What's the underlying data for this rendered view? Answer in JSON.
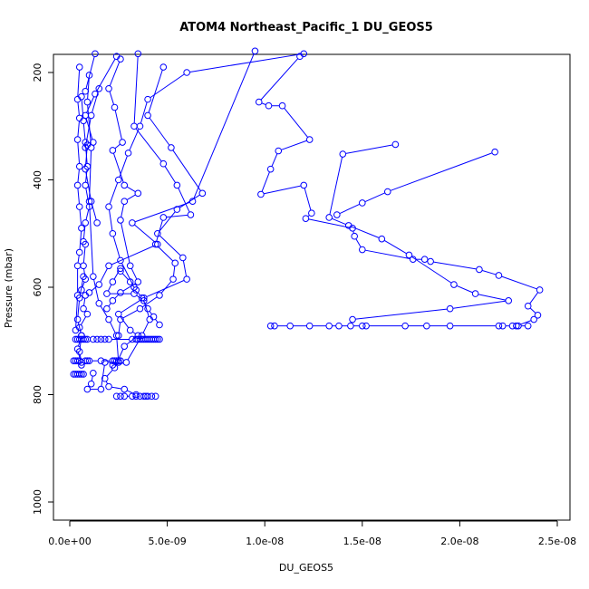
{
  "chart_data": {
    "type": "line",
    "title": "ATOM4 Northeast_Pacific_1 DU_GEOS5",
    "xlabel": "DU_GEOS5",
    "ylabel": "Pressure (mbar)",
    "xlim": [
      0,
      2.5e-08
    ],
    "ylim": [
      1030,
      160
    ],
    "y_inverted": true,
    "x_ticks": [
      0,
      5e-09,
      1e-08,
      1.5e-08,
      2e-08,
      2.5e-08
    ],
    "x_tick_labels": [
      "0.0e+00",
      "5.0e-09",
      "1.0e-08",
      "1.5e-08",
      "2.0e-08",
      "2.5e-08"
    ],
    "y_ticks": [
      200,
      400,
      600,
      800,
      1000
    ],
    "y_tick_labels": [
      "200",
      "400",
      "600",
      "800",
      "1000"
    ],
    "grid": false,
    "line_color": "#0000ff",
    "marker": "open-circle",
    "series": [
      {
        "x": [
          1.18e-08,
          9.7e-09,
          1.02e-08,
          1.09e-08,
          1.23e-08,
          1.07e-08,
          1.03e-08,
          9.8e-09,
          1.2e-08,
          1.24e-08,
          1.21e-08,
          1.45e-08,
          1.46e-08,
          1.5e-08,
          1.76e-08,
          1.82e-08,
          1.85e-08,
          2.1e-08,
          2.2e-08,
          2.41e-08,
          2.35e-08,
          2.4e-08,
          2.38e-08,
          2.29e-08
        ],
        "y": [
          170,
          255,
          262,
          262,
          325,
          346,
          380,
          427,
          410,
          462,
          472,
          490,
          505,
          530,
          548,
          548,
          552,
          567,
          578,
          605,
          635,
          652,
          660,
          672
        ]
      },
      {
        "x": [
          1.03e-08,
          1.05e-08,
          1.13e-08,
          1.23e-08,
          1.33e-08,
          1.38e-08,
          1.44e-08,
          1.5e-08,
          1.52e-08,
          1.72e-08,
          1.83e-08,
          1.95e-08,
          2.2e-08,
          2.22e-08,
          2.27e-08,
          2.3e-08,
          2.35e-08
        ],
        "y": [
          672,
          672,
          672,
          672,
          672,
          672,
          672,
          672,
          672,
          672,
          672,
          672,
          672,
          672,
          672,
          672,
          672
        ]
      },
      {
        "x": [
          1.67e-08,
          1.4e-08,
          1.33e-08,
          1.43e-08,
          1.6e-08,
          1.74e-08,
          1.97e-08,
          2.08e-08,
          2.25e-08,
          1.95e-08,
          1.45e-08
        ],
        "y": [
          334,
          352,
          470,
          485,
          510,
          540,
          595,
          612,
          625,
          640,
          660
        ]
      },
      {
        "x": [
          2.18e-08,
          1.63e-08,
          1.5e-08,
          1.37e-08
        ],
        "y": [
          348,
          422,
          443,
          465
        ]
      },
      {
        "x": [
          9.5e-09,
          6.3e-09,
          3.2e-09,
          4.5e-09,
          2e-09,
          1.5e-09,
          1e-09
        ],
        "y": [
          160,
          440,
          480,
          520,
          560,
          595,
          610
        ]
      },
      {
        "x": [
          1.2e-08,
          6e-09,
          4e-09,
          3.6e-09,
          3e-09,
          2.5e-09,
          2e-09,
          2.2e-09,
          2.6e-09,
          3.3e-09
        ],
        "y": [
          165,
          200,
          250,
          300,
          350,
          400,
          450,
          500,
          550,
          600
        ]
      },
      {
        "x": [
          4.8e-09,
          4e-09,
          5.2e-09,
          6.8e-09,
          5.5e-09,
          4.5e-09,
          5.8e-09,
          6e-09,
          3.8e-09,
          2.5e-09,
          3.1e-09,
          3.5e-09,
          2.8e-09,
          2.3e-09,
          1.8e-09,
          2e-09,
          2.8e-09,
          3.4e-09
        ],
        "y": [
          190,
          280,
          340,
          425,
          455,
          500,
          545,
          585,
          620,
          650,
          680,
          690,
          710,
          750,
          770,
          785,
          790,
          800
        ]
      },
      {
        "x": [
          3.5e-09,
          3.3e-09,
          4.8e-09,
          5.5e-09,
          6.2e-09,
          4.8e-09,
          4.4e-09,
          5.4e-09,
          5.3e-09,
          4.6e-09,
          3.6e-09,
          2.6e-09,
          2.5e-09
        ],
        "y": [
          165,
          300,
          370,
          410,
          465,
          470,
          520,
          555,
          585,
          615,
          640,
          660,
          690
        ]
      },
      {
        "x": [
          2.4e-09,
          1.3e-09,
          8e-10,
          1.2e-09,
          9e-10,
          8e-10,
          1.1e-09,
          1.4e-09
        ],
        "y": [
          170,
          240,
          280,
          330,
          335,
          380,
          440,
          480
        ]
      },
      {
        "x": [
          1.3e-09,
          8e-10,
          6e-10,
          7e-10,
          8e-10,
          9e-10,
          8e-10,
          1e-09,
          8e-10,
          7e-10,
          8e-10,
          7e-10,
          8e-10,
          6e-10,
          8e-10,
          7e-10,
          9e-10,
          5e-10,
          6e-10,
          5e-10,
          6e-10
        ],
        "y": [
          165,
          235,
          245,
          290,
          330,
          375,
          410,
          450,
          480,
          515,
          520,
          560,
          585,
          605,
          615,
          640,
          650,
          675,
          690,
          720,
          740
        ]
      },
      {
        "x": [
          5e-10,
          4e-10,
          5e-10,
          4e-10,
          5e-10,
          4e-10,
          5e-10,
          6e-10,
          5e-10,
          4e-10,
          4e-10,
          3e-10
        ],
        "y": [
          190,
          250,
          285,
          325,
          375,
          410,
          450,
          490,
          535,
          560,
          615,
          680
        ]
      },
      {
        "x": [
          1e-09,
          9e-10,
          1.1e-09,
          1e-09,
          1.2e-09,
          1.5e-09,
          2e-09,
          2.4e-09,
          2.5e-09,
          1.8e-09,
          1.6e-09,
          9e-10,
          1.1e-09,
          1.2e-09
        ],
        "y": [
          205,
          255,
          340,
          440,
          580,
          630,
          660,
          690,
          740,
          740,
          790,
          790,
          780,
          760
        ]
      },
      {
        "x": [
          1.5e-09,
          1.1e-09,
          8e-10
        ],
        "y": [
          230,
          280,
          340
        ]
      },
      {
        "x": [
          2.6e-09,
          2e-09,
          2.3e-09,
          2.7e-09,
          2.2e-09,
          2.8e-09,
          3.5e-09,
          2.8e-09,
          2.6e-09,
          3.1e-09,
          3.5e-09,
          2.6e-09,
          2.2e-09,
          1.9e-09
        ],
        "y": [
          175,
          230,
          265,
          330,
          345,
          410,
          425,
          440,
          475,
          560,
          590,
          610,
          625,
          640
        ]
      },
      {
        "x": [
          2.6e-09,
          2.2e-09,
          1.9e-09,
          3.3e-09,
          3.8e-09,
          4.1e-09,
          3.7e-09,
          2.9e-09,
          2.2e-09
        ],
        "y": [
          565,
          590,
          612,
          612,
          625,
          660,
          690,
          740,
          745
        ]
      },
      {
        "x": [
          2.6e-09,
          3.1e-09,
          3.4e-09,
          3.7e-09,
          4e-09,
          4.3e-09,
          4.6e-09
        ],
        "y": [
          570,
          590,
          605,
          620,
          640,
          655,
          670
        ]
      },
      {
        "x": [
          3e-10,
          4e-10,
          5e-10,
          6e-10,
          7e-10,
          8e-10,
          9e-10,
          1.2e-09,
          1.4e-09,
          1.6e-09,
          1.8e-09,
          2e-09,
          3.2e-09,
          3.4e-09,
          3.5e-09,
          3.6e-09,
          3.7e-09,
          3.8e-09,
          3.9e-09,
          4e-09,
          4.1e-09,
          4.2e-09,
          4.3e-09,
          4.4e-09,
          4.5e-09,
          4.6e-09
        ],
        "y": [
          697,
          697,
          697,
          697,
          697,
          697,
          697,
          697,
          697,
          697,
          697,
          697,
          697,
          697,
          697,
          697,
          697,
          697,
          697,
          697,
          697,
          697,
          697,
          697,
          697,
          697
        ]
      },
      {
        "x": [
          2e-10,
          3e-10,
          4e-10,
          5e-10,
          8e-10,
          9e-10,
          1e-09,
          1.6e-09,
          2.2e-09,
          2.3e-09,
          2.4e-09,
          2.5e-09,
          2.6e-09
        ],
        "y": [
          737,
          737,
          737,
          737,
          737,
          737,
          737,
          737,
          737,
          737,
          737,
          737,
          737
        ]
      },
      {
        "x": [
          2e-10,
          3e-10,
          4e-10,
          5e-10,
          6e-10,
          7e-10
        ],
        "y": [
          762,
          762,
          762,
          762,
          762,
          762
        ]
      },
      {
        "x": [
          2.4e-09,
          2.6e-09,
          2.8e-09,
          3.2e-09,
          3.4e-09,
          3.6e-09,
          3.8e-09,
          3.9e-09,
          4e-09,
          4.2e-09,
          4.4e-09
        ],
        "y": [
          803,
          803,
          803,
          803,
          803,
          803,
          803,
          803,
          803,
          803,
          803
        ]
      },
      {
        "x": [
          7e-10,
          5e-10,
          4e-10,
          6e-10,
          4e-10,
          6e-10
        ],
        "y": [
          580,
          620,
          660,
          690,
          715,
          745
        ]
      }
    ]
  }
}
